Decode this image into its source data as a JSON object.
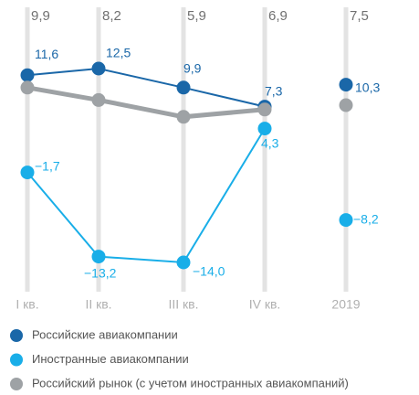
{
  "chart_data": {
    "type": "line",
    "categories": [
      "I кв.",
      "II кв.",
      "III кв.",
      "IV кв.",
      "2019"
    ],
    "ylim": [
      -18,
      20
    ],
    "series": [
      {
        "name": "Российские авиакомпании",
        "color": "#1a67a8",
        "values": [
          11.6,
          12.5,
          9.9,
          7.3,
          10.3
        ],
        "value_labels": [
          "11,6",
          "12,5",
          "9,9",
          "7,3",
          "10,3"
        ]
      },
      {
        "name": "Иностранные авиакомпании",
        "color": "#19aee8",
        "values": [
          -1.7,
          -13.2,
          -14.0,
          4.3,
          -8.2
        ],
        "value_labels": [
          "−1,7",
          "−13,2",
          "−14,0",
          "4,3",
          "−8,2"
        ]
      },
      {
        "name": "Российский рынок (с учетом иностранных авиакомпаний)",
        "color": "#9ea2a5",
        "values": [
          9.9,
          8.2,
          5.9,
          6.9,
          7.5
        ],
        "value_labels": [
          "9,9",
          "8,2",
          "5,9",
          "6,9",
          "7,5"
        ]
      }
    ]
  }
}
